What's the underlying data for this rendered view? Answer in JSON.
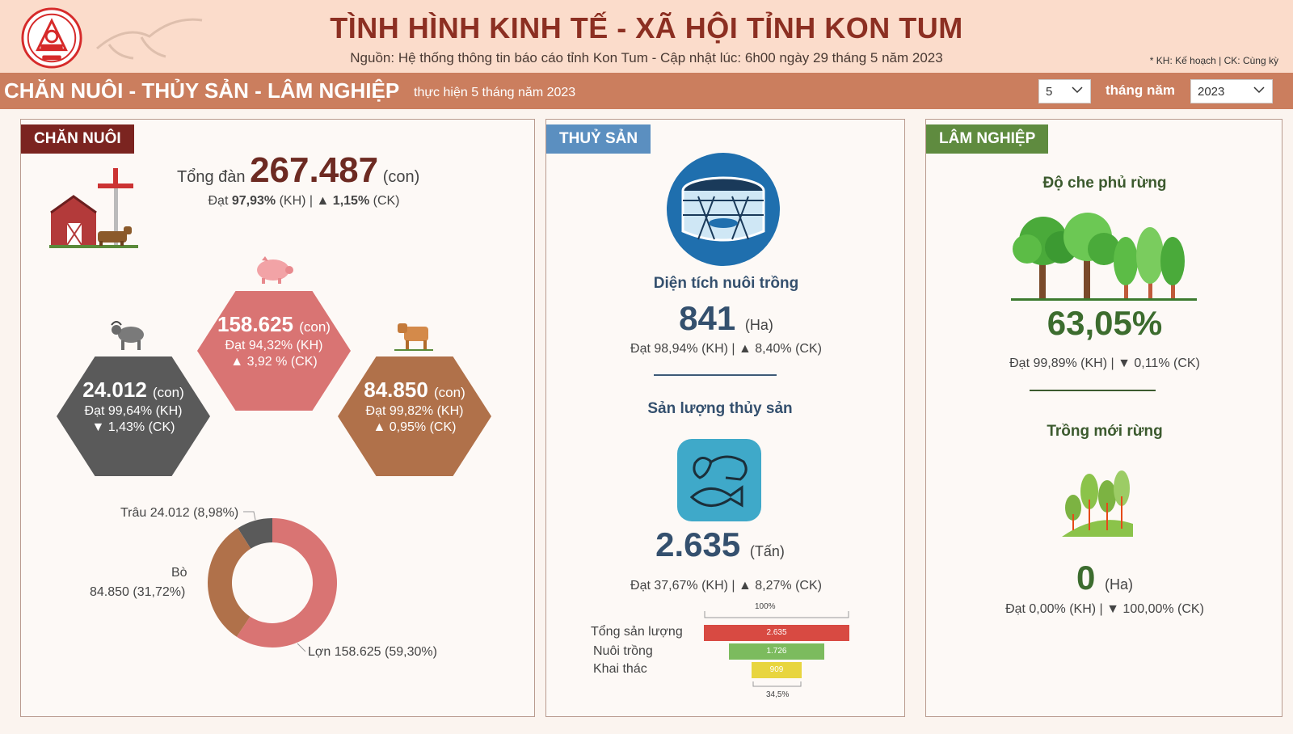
{
  "header": {
    "title": "TÌNH HÌNH KINH TẾ - XÃ HỘI TỈNH KON TUM",
    "subtitle": "Nguồn: Hệ thống thông tin báo cáo tỉnh Kon Tum - Cập nhật lúc: 6h00 ngày 29 tháng 5 năm 2023",
    "legend_note": "* KH: Kế hoạch | CK: Cùng kỳ",
    "logo_icon": "kon-tum-emblem-icon"
  },
  "section_bar": {
    "title": "CHĂN NUÔI - THỦY SẢN - LÂM NGHIỆP",
    "subtitle": "thực hiện 5 tháng năm 2023",
    "month_value": "5",
    "month_label": "tháng năm",
    "year_value": "2023"
  },
  "chan_nuoi": {
    "tag": "CHĂN NUÔI",
    "tong_dan_label": "Tổng đàn",
    "tong_dan_value": "267.487",
    "unit": "(con)",
    "tong_dan_dat": "Đạt",
    "tong_dan_kh": "97,93%",
    "tong_dan_kh_label": "(KH) |",
    "tong_dan_ck_arrow": "▲",
    "tong_dan_ck": "1,15%",
    "tong_dan_ck_label": "(CK)",
    "hexagons": [
      {
        "key": "lon",
        "icon": "pig-icon",
        "value": "158.625",
        "unit": "(con)",
        "kh": "Đạt 94,32% (KH)",
        "ck": "▲ 3,92 % (CK)",
        "color": "#d97473"
      },
      {
        "key": "trau",
        "icon": "buffalo-icon",
        "value": "24.012",
        "unit": "(con)",
        "kh": "Đạt 99,64% (KH)",
        "ck": "▼ 1,43% (CK)",
        "color": "#5a5a5a"
      },
      {
        "key": "bo",
        "icon": "cow-icon",
        "value": "84.850",
        "unit": "(con)",
        "kh": "Đạt 99,82% (KH)",
        "ck": "▲ 0,95% (CK)",
        "color": "#b0714a"
      }
    ],
    "donut": {
      "labels": [
        "Trâu 24.012 (8,98%)",
        "Bò",
        "84.850 (31,72%)",
        "Lợn 158.625 (59,30%)"
      ]
    }
  },
  "chart_data": {
    "type": "pie",
    "categories": [
      "Trâu",
      "Bò",
      "Lợn"
    ],
    "values": [
      24012,
      84850,
      158625
    ],
    "percentages": [
      8.98,
      31.72,
      59.3
    ],
    "colors": [
      "#5a5a5a",
      "#b0714a",
      "#d97473"
    ]
  },
  "thuy_san": {
    "tag": "THUỶ SẢN",
    "dien_tich_label": "Diện tích nuôi trồng",
    "dien_tich_value": "841",
    "dien_tich_unit": "(Ha)",
    "dien_tich_sub": "Đạt 98,94% (KH) | ▲ 8,40% (CK)",
    "san_luong_label": "Sản lượng thủy sản",
    "san_luong_value": "2.635",
    "san_luong_unit": "(Tấn)",
    "san_luong_sub": "Đạt 37,67% (KH) | ▲ 8,27% (CK)",
    "bar_top_label": "100%",
    "bar_bottom_label": "34,5%",
    "bars": [
      {
        "label": "Tổng sản lượng",
        "value": 2635,
        "display": "2.635",
        "color": "#d84a42"
      },
      {
        "label": "Nuôi trồng",
        "value": 1726,
        "display": "1.726",
        "color": "#7cbb5e"
      },
      {
        "label": "Khai thác",
        "value": 909,
        "display": "909",
        "color": "#e8d53f"
      }
    ]
  },
  "lam_nghiep": {
    "tag": "LÂM NGHIỆP",
    "do_che_phu_label": "Độ che phủ rừng",
    "do_che_phu_value": "63,05%",
    "do_che_phu_sub": "Đạt 99,89% (KH) | ▼ 0,11% (CK)",
    "trong_moi_label": "Trồng mới rừng",
    "trong_moi_value": "0",
    "trong_moi_unit": "(Ha)",
    "trong_moi_sub": "Đạt 0,00% (KH) | ▼ 100,00% (CK)"
  }
}
